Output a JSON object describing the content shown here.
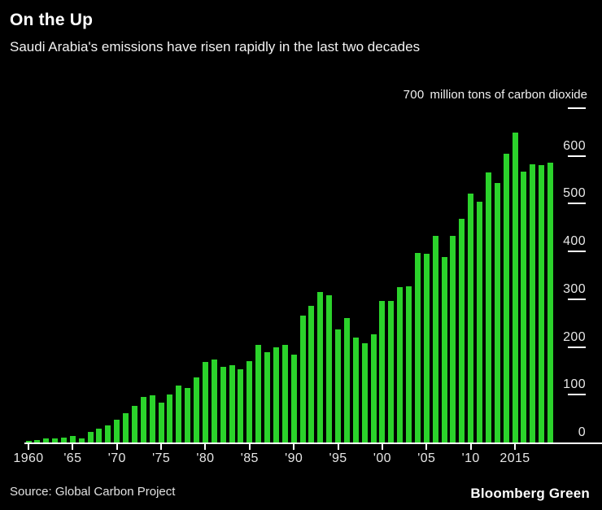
{
  "header": {
    "title": "On the Up",
    "subtitle": "Saudi Arabia's emissions have risen rapidly in the last two decades"
  },
  "axis_note": {
    "value": "700",
    "text": "million tons of carbon dioxide"
  },
  "footer": {
    "source": "Source: Global Carbon Project",
    "brand": "Bloomberg Green"
  },
  "colors": {
    "background": "#000000",
    "bar_green": "#2bd32b",
    "axis_line": "#ffffff",
    "tick_label": "#e6e6e6",
    "title_text": "#ffffff"
  },
  "chart_data": {
    "type": "bar",
    "title": "On the Up",
    "subtitle": "Saudi Arabia's emissions have risen rapidly in the last two decades",
    "ylabel": "million tons of carbon dioxide",
    "xlabel": "",
    "ylim": [
      0,
      700
    ],
    "ytick_interval": 100,
    "ytick_labels": [
      "0",
      "100",
      "200",
      "300",
      "400",
      "500",
      "600"
    ],
    "top_tick_value": 700,
    "grid": "off",
    "legend": "none",
    "bar_color": "#2bd32b",
    "x": [
      1960,
      1961,
      1962,
      1963,
      1964,
      1965,
      1966,
      1967,
      1968,
      1969,
      1970,
      1971,
      1972,
      1973,
      1974,
      1975,
      1976,
      1977,
      1978,
      1979,
      1980,
      1981,
      1982,
      1983,
      1984,
      1985,
      1986,
      1987,
      1988,
      1989,
      1990,
      1991,
      1992,
      1993,
      1994,
      1995,
      1996,
      1997,
      1998,
      1999,
      2000,
      2001,
      2002,
      2003,
      2004,
      2005,
      2006,
      2007,
      2008,
      2009,
      2010,
      2011,
      2012,
      2013,
      2014,
      2015,
      2016,
      2017,
      2018,
      2019
    ],
    "values": [
      4,
      5,
      8,
      8,
      11,
      13,
      9,
      22,
      29,
      36,
      48,
      61,
      76,
      95,
      99,
      83,
      101,
      119,
      114,
      136,
      168,
      174,
      158,
      161,
      153,
      170,
      205,
      189,
      199,
      204,
      184,
      265,
      286,
      315,
      309,
      236,
      261,
      220,
      208,
      227,
      297,
      297,
      325,
      327,
      397,
      395,
      432,
      388,
      432,
      468,
      521,
      504,
      565,
      543,
      605,
      649,
      568,
      583,
      581,
      586
    ],
    "xtick_labels": [
      {
        "year": 1960,
        "label": "1960"
      },
      {
        "year": 1965,
        "label": "'65"
      },
      {
        "year": 1970,
        "label": "'70"
      },
      {
        "year": 1975,
        "label": "'75"
      },
      {
        "year": 1980,
        "label": "'80"
      },
      {
        "year": 1985,
        "label": "'85"
      },
      {
        "year": 1990,
        "label": "'90"
      },
      {
        "year": 1995,
        "label": "'95"
      },
      {
        "year": 2000,
        "label": "'00"
      },
      {
        "year": 2005,
        "label": "'05"
      },
      {
        "year": 2010,
        "label": "'10"
      },
      {
        "year": 2015,
        "label": "2015"
      }
    ],
    "source": "Global Carbon Project"
  }
}
